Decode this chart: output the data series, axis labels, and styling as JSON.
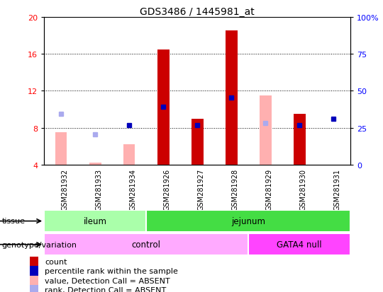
{
  "title": "GDS3486 / 1445981_at",
  "samples": [
    "GSM281932",
    "GSM281933",
    "GSM281934",
    "GSM281926",
    "GSM281927",
    "GSM281928",
    "GSM281929",
    "GSM281930",
    "GSM281931"
  ],
  "ylim": [
    4,
    20
  ],
  "yticks": [
    4,
    8,
    12,
    16,
    20
  ],
  "ytick_labels_left": [
    "4",
    "8",
    "12",
    "16",
    "20"
  ],
  "ytick_labels_right": [
    "0",
    "25",
    "50",
    "75",
    "100%"
  ],
  "count_bars": [
    null,
    null,
    null,
    16.5,
    9.0,
    18.5,
    null,
    9.5,
    null
  ],
  "absent_value_bars": [
    7.5,
    4.2,
    6.2,
    null,
    null,
    null,
    11.5,
    null,
    null
  ],
  "absent_rank_markers": [
    9.5,
    7.3,
    null,
    null,
    null,
    null,
    8.5,
    null,
    null
  ],
  "percentile_rank_markers": [
    null,
    null,
    8.3,
    10.3,
    8.3,
    11.3,
    null,
    8.3,
    9.0
  ],
  "count_bar_color": "#cc0000",
  "absent_value_color": "#ffb0b0",
  "absent_rank_color": "#aaaaee",
  "percentile_rank_color": "#0000bb",
  "sample_bg_color": "#cccccc",
  "tissue_ileum_color": "#aaffaa",
  "tissue_jejunum_color": "#44dd44",
  "geno_control_color": "#ffaaff",
  "geno_gata4_color": "#ff44ff",
  "bar_width": 0.35,
  "legend_items": [
    {
      "label": "count",
      "color": "#cc0000"
    },
    {
      "label": "percentile rank within the sample",
      "color": "#0000bb"
    },
    {
      "label": "value, Detection Call = ABSENT",
      "color": "#ffb0b0"
    },
    {
      "label": "rank, Detection Call = ABSENT",
      "color": "#aaaaee"
    }
  ]
}
